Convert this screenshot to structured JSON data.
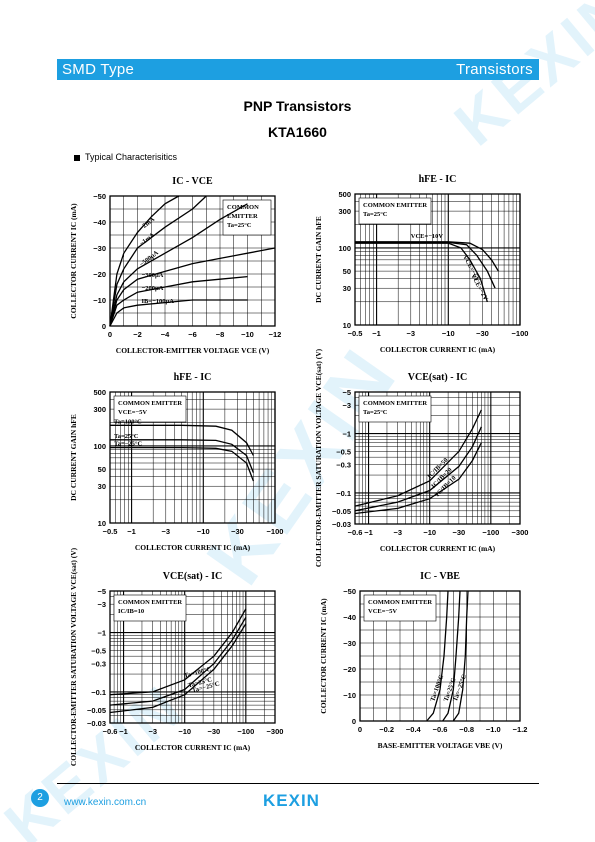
{
  "header": {
    "left": "SMD Type",
    "right": "Transistors",
    "color": "#1d9fe1"
  },
  "title": {
    "line1": "PNP  Transistors",
    "line2": "KTA1660"
  },
  "section": "Typical  Characterisitics",
  "watermark": "KEXIN",
  "footer": {
    "page": "2",
    "site": "www.kexin.com.cn",
    "brand": "KEXIN"
  },
  "charts": [
    {
      "title": "IC - VCE",
      "xlabel": "COLLECTOR-EMITTER VOLTAGE VCE (V)",
      "ylabel": "COLLECTOR CURRENT IC (mA)",
      "xticks": [
        "0",
        "−2",
        "−4",
        "−6",
        "−8",
        "−10",
        "−12"
      ],
      "yticks": [
        "−50",
        "−40",
        "−30",
        "−20",
        "−10",
        "0"
      ],
      "notes": [
        "COMMON",
        "EMITTER",
        "Ta=25°C"
      ],
      "curve_labels": [
        "−2mA",
        "−1mA",
        "−500μA",
        "−300μA",
        "−200μA",
        "IB=−100μA"
      ]
    },
    {
      "title": "hFE - IC",
      "xlabel": "COLLECTOR CURRENT IC (mA)",
      "ylabel": "DC CURRENT GAIN hFE",
      "xticks": [
        "−0.5",
        "−1",
        "−3",
        "−10",
        "−30",
        "−100"
      ],
      "yticks": [
        "500",
        "300",
        "100",
        "50",
        "30",
        "10"
      ],
      "notes": [
        "COMMON EMITTER",
        "Ta=25°C"
      ],
      "curve_labels": [
        "VCE=−10V",
        "VCE=−5V",
        "VCE=−2V"
      ]
    },
    {
      "title": "hFE - IC",
      "xlabel": "COLLECTOR CURRENT IC (mA)",
      "ylabel": "DC CURRENT GAIN hFE",
      "xticks": [
        "−0.5",
        "−1",
        "−3",
        "−10",
        "−30",
        "−100"
      ],
      "yticks": [
        "500",
        "300",
        "100",
        "50",
        "30",
        "10"
      ],
      "notes": [
        "COMMON EMITTER",
        "VCE=−5V"
      ],
      "curve_labels": [
        "Ta=100°C",
        "Ta=25°C",
        "Ta=−25°C"
      ]
    },
    {
      "title": "VCE(sat) - IC",
      "xlabel": "COLLECTOR CURRENT IC (mA)",
      "ylabel": "COLLECTOR-EMITTER SATURATION VOLTAGE VCE(sat) (V)",
      "xticks": [
        "−0.6",
        "−1",
        "−3",
        "−10",
        "−30",
        "−100",
        "−300"
      ],
      "yticks": [
        "−5",
        "−3",
        "−1",
        "−0.5",
        "−0.3",
        "−0.1",
        "−0.05",
        "−0.03"
      ],
      "notes": [
        "COMMON EMITTER",
        "Ta=25°C"
      ],
      "curve_labels": [
        "IC/IB=50",
        "IC/IB=20",
        "IC/IB=10"
      ]
    },
    {
      "title": "VCE(sat) - IC",
      "xlabel": "COLLECTOR CURRENT IC (mA)",
      "ylabel": "COLLECTOR-EMITTER SATURATION VOLTAGE VCE(sat) (V)",
      "xticks": [
        "−0.6",
        "−1",
        "−3",
        "−10",
        "−30",
        "−100",
        "−300"
      ],
      "yticks": [
        "−5",
        "−3",
        "−1",
        "−0.5",
        "−0.3",
        "−0.1",
        "−0.05",
        "−0.03"
      ],
      "notes": [
        "COMMON EMITTER",
        "IC/IB=10"
      ],
      "curve_labels": [
        "Ta=100°C",
        "Ta=25°C",
        "Ta=−25°C"
      ]
    },
    {
      "title": "IC - VBE",
      "xlabel": "BASE-EMITTER VOLTAGE VBE (V)",
      "ylabel": "COLLECTOR CURRENT IC (mA)",
      "xticks": [
        "0",
        "−0.2",
        "−0.4",
        "−0.6",
        "−0.8",
        "−1.0",
        "−1.2"
      ],
      "yticks": [
        "−50",
        "−40",
        "−30",
        "−20",
        "−10",
        "0"
      ],
      "notes": [
        "COMMON EMITTER",
        "VCE=−5V"
      ],
      "curve_labels": [
        "Ta=100°C",
        "Ta=25°C",
        "Ta=−25°C"
      ]
    }
  ],
  "chart_data": [
    {
      "type": "line",
      "title": "IC - VCE",
      "xlim": [
        0,
        -12
      ],
      "ylim": [
        0,
        -50
      ],
      "series": [
        {
          "name": "−2mA",
          "x": [
            0,
            -0.5,
            -1,
            -2,
            -3,
            -4,
            -5
          ],
          "y": [
            0,
            -20,
            -28,
            -36,
            -42,
            -47,
            -50
          ]
        },
        {
          "name": "−1mA",
          "x": [
            0,
            -0.5,
            -1,
            -2,
            -4,
            -6,
            -7
          ],
          "y": [
            0,
            -16,
            -22,
            -30,
            -38,
            -45,
            -50
          ]
        },
        {
          "name": "−500μA",
          "x": [
            0,
            -0.5,
            -1,
            -2,
            -4,
            -6,
            -8,
            -10
          ],
          "y": [
            0,
            -12,
            -17,
            -22,
            -28,
            -34,
            -41,
            -47
          ]
        },
        {
          "name": "−300μA",
          "x": [
            0,
            -0.5,
            -1,
            -2,
            -4,
            -6,
            -8,
            -10,
            -12
          ],
          "y": [
            0,
            -10,
            -14,
            -18,
            -21,
            -24,
            -26,
            -28,
            -30
          ]
        },
        {
          "name": "−200μA",
          "x": [
            0,
            -0.5,
            -1,
            -2,
            -4,
            -6,
            -8,
            -10
          ],
          "y": [
            0,
            -8,
            -10,
            -13,
            -15,
            -17,
            -18,
            -19
          ]
        },
        {
          "name": "IB=−100μA",
          "x": [
            0,
            -0.5,
            -1,
            -2,
            -4,
            -6,
            -8,
            -10
          ],
          "y": [
            0,
            -5,
            -7,
            -8,
            -9,
            -10,
            -10,
            -10
          ]
        }
      ]
    },
    {
      "type": "line",
      "title": "hFE - IC",
      "xlog": true,
      "ylog": true,
      "series": [
        {
          "name": "VCE=−10V",
          "x": [
            -0.5,
            -10,
            -20,
            -30,
            -40,
            -50
          ],
          "y": [
            120,
            120,
            115,
            95,
            70,
            50
          ]
        },
        {
          "name": "VCE=−5V",
          "x": [
            -0.5,
            -10,
            -18,
            -25,
            -35,
            -45
          ],
          "y": [
            118,
            118,
            110,
            80,
            50,
            30
          ]
        },
        {
          "name": "VCE=−2V",
          "x": [
            -0.5,
            -10,
            -15,
            -20,
            -28,
            -35
          ],
          "y": [
            115,
            115,
            100,
            70,
            40,
            20
          ]
        }
      ]
    },
    {
      "type": "line",
      "title": "hFE - IC",
      "xlog": true,
      "ylog": true,
      "series": [
        {
          "name": "Ta=100°C",
          "x": [
            -0.5,
            -5,
            -15,
            -25,
            -40,
            -50
          ],
          "y": [
            185,
            185,
            180,
            160,
            110,
            75
          ]
        },
        {
          "name": "Ta=25°C",
          "x": [
            -0.5,
            -5,
            -15,
            -25,
            -40,
            -50
          ],
          "y": [
            120,
            120,
            118,
            105,
            75,
            45
          ]
        },
        {
          "name": "Ta=−25°C",
          "x": [
            -0.5,
            -5,
            -15,
            -25,
            -40,
            -50
          ],
          "y": [
            95,
            95,
            93,
            85,
            60,
            35
          ]
        }
      ]
    },
    {
      "type": "line",
      "title": "VCE(sat) - IC",
      "xlog": true,
      "ylog": true,
      "series": [
        {
          "name": "IC/IB=50",
          "x": [
            -0.6,
            -3,
            -10,
            -30,
            -50,
            -70
          ],
          "y": [
            -0.06,
            -0.09,
            -0.16,
            -0.5,
            -1.2,
            -2.5
          ]
        },
        {
          "name": "IC/IB=20",
          "x": [
            -0.6,
            -3,
            -10,
            -30,
            -50,
            -70
          ],
          "y": [
            -0.05,
            -0.07,
            -0.11,
            -0.28,
            -0.6,
            -1.3
          ]
        },
        {
          "name": "IC/IB=10",
          "x": [
            -0.6,
            -3,
            -10,
            -30,
            -50,
            -70
          ],
          "y": [
            -0.045,
            -0.055,
            -0.08,
            -0.17,
            -0.35,
            -0.7
          ]
        }
      ]
    },
    {
      "type": "line",
      "title": "VCE(sat) - IC",
      "xlog": true,
      "ylog": true,
      "series": [
        {
          "name": "Ta=100°C",
          "x": [
            -0.6,
            -3,
            -10,
            -30,
            -60,
            -100
          ],
          "y": [
            -0.09,
            -0.1,
            -0.16,
            -0.4,
            -1,
            -2.5
          ]
        },
        {
          "name": "Ta=25°C",
          "x": [
            -0.6,
            -3,
            -10,
            -30,
            -60,
            -100
          ],
          "y": [
            -0.06,
            -0.07,
            -0.11,
            -0.3,
            -0.75,
            -1.8
          ]
        },
        {
          "name": "Ta=−25°C",
          "x": [
            -0.6,
            -3,
            -10,
            -30,
            -60,
            -100
          ],
          "y": [
            -0.045,
            -0.055,
            -0.09,
            -0.24,
            -0.6,
            -1.4
          ]
        }
      ]
    },
    {
      "type": "line",
      "title": "IC - VBE",
      "xlim": [
        0,
        -1.2
      ],
      "ylim": [
        0,
        -50
      ],
      "series": [
        {
          "name": "Ta=100°C",
          "x": [
            -0.5,
            -0.55,
            -0.6,
            -0.63,
            -0.65,
            -0.66
          ],
          "y": [
            0,
            -3,
            -12,
            -25,
            -40,
            -50
          ]
        },
        {
          "name": "Ta=25°C",
          "x": [
            -0.62,
            -0.66,
            -0.7,
            -0.72,
            -0.74,
            -0.75
          ],
          "y": [
            0,
            -3,
            -12,
            -25,
            -40,
            -50
          ]
        },
        {
          "name": "Ta=−25°C",
          "x": [
            -0.7,
            -0.74,
            -0.77,
            -0.79,
            -0.8,
            -0.81
          ],
          "y": [
            0,
            -3,
            -12,
            -25,
            -40,
            -50
          ]
        }
      ]
    }
  ]
}
